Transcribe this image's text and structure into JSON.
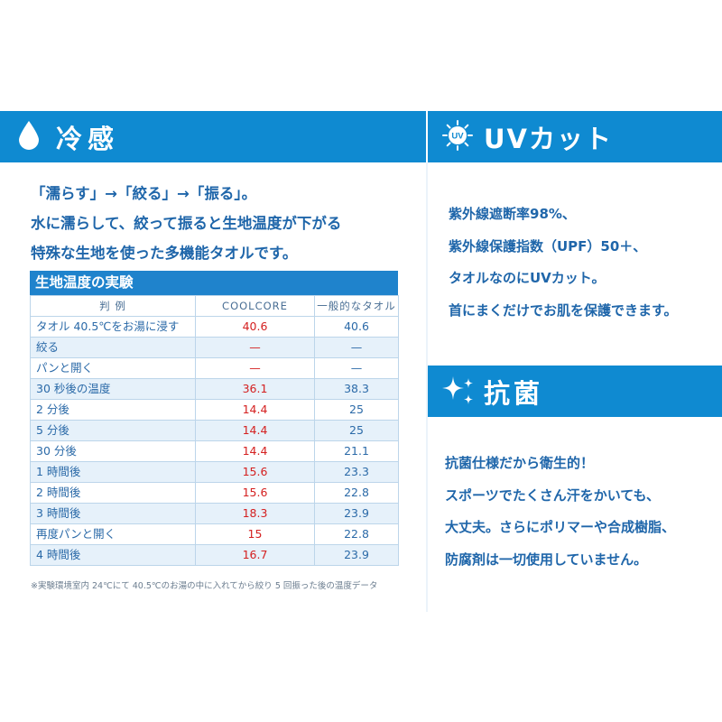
{
  "cooling": {
    "title": "冷感",
    "lead": [
      "「濡らす」→「絞る」→「振る」。",
      "水に濡らして、絞って振ると生地温度が下がる",
      "特殊な生地を使った多機能タオルです。"
    ],
    "table": {
      "title": "生地温度の実験",
      "headers": [
        "判 例",
        "COOLCORE",
        "一般的なタオル"
      ],
      "rows": [
        {
          "label": "タオル 40.5℃をお湯に浸す",
          "coolcore": "40.6",
          "general": "40.6"
        },
        {
          "label": "絞る",
          "coolcore": "—",
          "general": "—"
        },
        {
          "label": "パンと開く",
          "coolcore": "—",
          "general": "—"
        },
        {
          "label": "30 秒後の温度",
          "coolcore": "36.1",
          "general": "38.3"
        },
        {
          "label": "2 分後",
          "coolcore": "14.4",
          "general": "25"
        },
        {
          "label": "5 分後",
          "coolcore": "14.4",
          "general": "25"
        },
        {
          "label": "30 分後",
          "coolcore": "14.4",
          "general": "21.1"
        },
        {
          "label": "1 時間後",
          "coolcore": "15.6",
          "general": "23.3"
        },
        {
          "label": "2 時間後",
          "coolcore": "15.6",
          "general": "22.8"
        },
        {
          "label": "3 時間後",
          "coolcore": "18.3",
          "general": "23.9"
        },
        {
          "label": "再度パンと開く",
          "coolcore": "15",
          "general": "22.8"
        },
        {
          "label": "4 時間後",
          "coolcore": "16.7",
          "general": "23.9"
        }
      ]
    },
    "footnote": "※実験環境室内 24℃にて 40.5℃のお湯の中に入れてから絞り 5 回振った後の温度データ"
  },
  "uv": {
    "title": "UVカット",
    "badge": "UV",
    "lines": [
      "紫外線遮断率98%、",
      "紫外線保護指数（UPF）50＋、",
      "タオルなのにUVカット。",
      "首にまくだけでお肌を保護できます。"
    ]
  },
  "antibacterial": {
    "title": "抗菌",
    "lines": [
      "抗菌仕様だから衛生的！",
      "スポーツでたくさん汗をかいても、",
      "大丈夫。さらにポリマーや合成樹脂、",
      "防腐剤は一切使用していません。"
    ]
  },
  "colors": {
    "band": "#0f8ad1",
    "text": "#1f66aa",
    "coolcore_value": "#d42020",
    "row_stripe": "#e6f1fa"
  },
  "icons": {
    "cooling": "water-drop-icon",
    "uv": "uv-sun-icon",
    "antibacterial": "sparkle-icon"
  }
}
